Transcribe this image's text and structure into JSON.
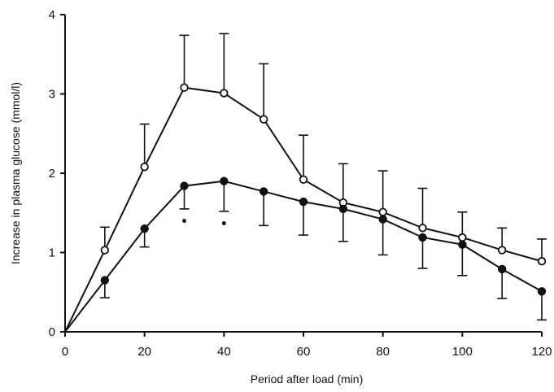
{
  "chart_data": {
    "type": "line",
    "title": "",
    "xlabel": "Period after load (min)",
    "ylabel": "Increase in plasma glucose (mmol/l)",
    "xlim": [
      0,
      120
    ],
    "ylim": [
      0,
      4
    ],
    "xticks": [
      0,
      20,
      40,
      60,
      80,
      100,
      120
    ],
    "yticks": [
      0,
      1,
      2,
      3,
      4
    ],
    "grid": false,
    "legend": "none",
    "x": [
      0,
      10,
      20,
      30,
      40,
      50,
      60,
      70,
      80,
      90,
      100,
      110,
      120
    ],
    "series": [
      {
        "marker": "open-circle",
        "values": [
          0,
          1.03,
          2.08,
          3.08,
          3.01,
          2.68,
          1.92,
          1.63,
          1.51,
          1.31,
          1.19,
          1.03,
          0.89
        ],
        "error_upper": [
          0,
          1.32,
          2.62,
          3.74,
          3.76,
          3.38,
          2.48,
          2.12,
          2.03,
          1.81,
          1.51,
          1.31,
          1.17
        ]
      },
      {
        "marker": "filled-circle",
        "values": [
          0,
          0.65,
          1.3,
          1.84,
          1.9,
          1.77,
          1.64,
          1.55,
          1.42,
          1.19,
          1.1,
          0.79,
          0.51
        ],
        "error_lower": [
          0,
          0.43,
          1.07,
          1.55,
          1.52,
          1.34,
          1.22,
          1.14,
          0.97,
          0.8,
          0.71,
          0.42,
          0.15
        ]
      }
    ],
    "annotations": [
      {
        "text": "•",
        "x": 30,
        "y": 1.4
      },
      {
        "text": "•",
        "x": 40,
        "y": 1.37
      }
    ]
  }
}
